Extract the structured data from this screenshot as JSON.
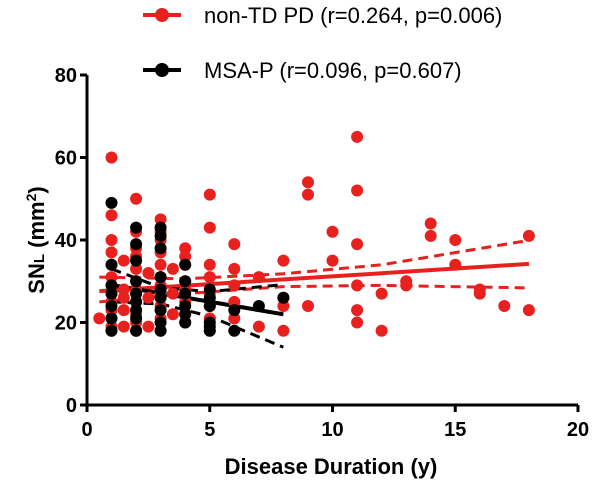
{
  "chart_data": {
    "type": "scatter",
    "title": "",
    "xlabel": "Disease Duration (y)",
    "ylabel_main": "SN",
    "ylabel_sub": "L",
    "ylabel_unit_open": " (mm",
    "ylabel_unit_sup": "2",
    "ylabel_unit_close": ")",
    "xlim": [
      0,
      20
    ],
    "ylim": [
      0,
      80
    ],
    "xticks": [
      "0",
      "5",
      "10",
      "15",
      "20"
    ],
    "yticks": [
      "0",
      "20",
      "40",
      "60",
      "80"
    ],
    "grid": false,
    "legend_position": "top-right",
    "series": [
      {
        "name": "non-TD PD (r=0.264, p=0.006)",
        "color": "#e8211f",
        "points": [
          [
            0.5,
            21
          ],
          [
            1,
            60
          ],
          [
            1,
            46
          ],
          [
            1,
            40
          ],
          [
            1,
            37
          ],
          [
            1,
            34
          ],
          [
            1,
            31
          ],
          [
            1,
            29
          ],
          [
            1,
            27
          ],
          [
            1,
            25
          ],
          [
            1,
            23
          ],
          [
            1,
            21
          ],
          [
            1,
            19
          ],
          [
            1,
            18
          ],
          [
            1.5,
            35
          ],
          [
            1.5,
            28
          ],
          [
            1.5,
            26
          ],
          [
            1.5,
            23
          ],
          [
            1.5,
            19
          ],
          [
            2,
            50
          ],
          [
            2,
            42
          ],
          [
            2,
            38
          ],
          [
            2,
            36
          ],
          [
            2,
            33
          ],
          [
            2,
            30
          ],
          [
            2,
            28
          ],
          [
            2,
            25
          ],
          [
            2,
            22
          ],
          [
            2,
            20
          ],
          [
            2,
            18
          ],
          [
            2.5,
            32
          ],
          [
            2.5,
            26
          ],
          [
            2.5,
            19
          ],
          [
            3,
            45
          ],
          [
            3,
            42
          ],
          [
            3,
            40
          ],
          [
            3,
            37
          ],
          [
            3,
            34
          ],
          [
            3,
            31
          ],
          [
            3,
            29
          ],
          [
            3,
            27
          ],
          [
            3,
            24
          ],
          [
            3,
            21
          ],
          [
            3,
            18
          ],
          [
            3.5,
            33
          ],
          [
            3.5,
            27
          ],
          [
            3.5,
            22
          ],
          [
            4,
            38
          ],
          [
            4,
            36
          ],
          [
            4,
            34
          ],
          [
            4,
            30
          ],
          [
            4,
            28
          ],
          [
            4,
            25
          ],
          [
            4,
            22
          ],
          [
            4,
            20
          ],
          [
            5,
            51
          ],
          [
            5,
            43
          ],
          [
            5,
            34
          ],
          [
            5,
            31
          ],
          [
            5,
            27
          ],
          [
            5,
            24
          ],
          [
            5,
            21
          ],
          [
            5,
            18
          ],
          [
            6,
            39
          ],
          [
            6,
            33
          ],
          [
            6,
            29
          ],
          [
            6,
            25
          ],
          [
            6,
            21
          ],
          [
            7,
            31
          ],
          [
            7,
            19
          ],
          [
            8,
            35
          ],
          [
            8,
            26
          ],
          [
            8,
            24
          ],
          [
            8,
            18
          ],
          [
            9,
            54
          ],
          [
            9,
            51
          ],
          [
            9,
            24
          ],
          [
            10,
            42
          ],
          [
            10,
            35
          ],
          [
            11,
            65
          ],
          [
            11,
            52
          ],
          [
            11,
            39
          ],
          [
            11,
            29
          ],
          [
            11,
            23
          ],
          [
            11,
            20
          ],
          [
            12,
            27
          ],
          [
            12,
            18
          ],
          [
            13,
            30
          ],
          [
            13,
            29
          ],
          [
            14,
            44
          ],
          [
            14,
            41
          ],
          [
            15,
            40
          ],
          [
            15,
            34
          ],
          [
            16,
            28
          ],
          [
            16,
            27
          ],
          [
            17,
            24
          ],
          [
            18,
            41
          ],
          [
            18,
            23
          ]
        ],
        "fit": [
          [
            0.5,
            27.6
          ],
          [
            18,
            34.2
          ]
        ],
        "ci_upper": [
          [
            0.5,
            31.0
          ],
          [
            4,
            30.6
          ],
          [
            8,
            31.8
          ],
          [
            12,
            34.0
          ],
          [
            18,
            39.9
          ]
        ],
        "ci_lower": [
          [
            0.5,
            25.0
          ],
          [
            4,
            27.0
          ],
          [
            8,
            28.7
          ],
          [
            12,
            29.0
          ],
          [
            18,
            28.4
          ]
        ]
      },
      {
        "name": "MSA-P (r=0.096, p=0.607)",
        "color": "#000000",
        "points": [
          [
            1,
            49
          ],
          [
            1,
            34
          ],
          [
            1,
            29
          ],
          [
            1,
            27
          ],
          [
            1,
            24
          ],
          [
            1,
            21
          ],
          [
            1,
            18
          ],
          [
            2,
            43
          ],
          [
            2,
            39
          ],
          [
            2,
            35
          ],
          [
            2,
            30
          ],
          [
            2,
            27
          ],
          [
            2,
            25
          ],
          [
            2,
            23
          ],
          [
            2,
            21
          ],
          [
            2,
            18
          ],
          [
            3,
            43
          ],
          [
            3,
            41
          ],
          [
            3,
            38
          ],
          [
            3,
            31
          ],
          [
            3,
            28
          ],
          [
            3,
            26
          ],
          [
            3,
            23
          ],
          [
            3,
            20
          ],
          [
            3,
            18
          ],
          [
            4,
            34
          ],
          [
            4,
            30
          ],
          [
            4,
            27
          ],
          [
            4,
            24
          ],
          [
            4,
            22
          ],
          [
            4,
            20
          ],
          [
            5,
            28
          ],
          [
            5,
            26
          ],
          [
            5,
            24
          ],
          [
            5,
            20
          ],
          [
            5,
            19
          ],
          [
            5,
            18
          ],
          [
            6,
            23
          ],
          [
            6,
            18
          ],
          [
            7,
            24
          ],
          [
            8,
            26
          ]
        ],
        "fit": [
          [
            1,
            29.1
          ],
          [
            8,
            22.0
          ]
        ],
        "ci_upper": [
          [
            1,
            33.0
          ],
          [
            3,
            28.5
          ],
          [
            5,
            27.5
          ],
          [
            8,
            29.2
          ]
        ],
        "ci_lower": [
          [
            1,
            25.0
          ],
          [
            3,
            24.5
          ],
          [
            5,
            21.5
          ],
          [
            8,
            14.0
          ]
        ]
      }
    ]
  }
}
